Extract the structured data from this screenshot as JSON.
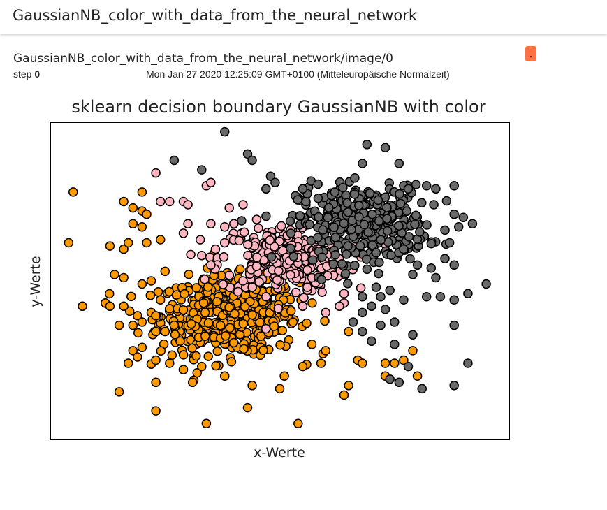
{
  "header": {
    "title": "GaussianNB_color_with_data_from_the_neural_network"
  },
  "card": {
    "tag": "GaussianNB_color_with_data_from_the_neural_network/image/0",
    "step_label": "step",
    "step_value": "0",
    "wall_time": "Mon Jan 27 2020 12:25:09 GMT+0100 (Mitteleuropäische Normalzeit)",
    "menu_button_color": "#ff7043"
  },
  "chart_data": {
    "type": "scatter",
    "title": "sklearn decision boundary GaussianNB with color",
    "xlabel": "x-Werte",
    "ylabel": "y-Werte",
    "ticks_visible": false,
    "xlim": [
      0,
      100
    ],
    "ylim": [
      0,
      100
    ],
    "marker_edge_color": "#000000",
    "series": [
      {
        "color": "#ff9900",
        "points": [
          [
            5,
            78
          ],
          [
            4,
            62
          ],
          [
            7,
            42
          ],
          [
            16,
            75
          ],
          [
            20,
            78
          ],
          [
            18,
            73
          ],
          [
            20,
            72
          ],
          [
            21,
            71
          ],
          [
            18,
            68
          ],
          [
            20,
            67
          ],
          [
            13,
            61
          ],
          [
            16,
            60
          ],
          [
            17,
            62
          ],
          [
            21,
            62
          ],
          [
            24,
            63
          ],
          [
            14,
            52
          ],
          [
            16,
            51
          ],
          [
            20,
            49
          ],
          [
            22,
            50
          ],
          [
            25,
            53
          ],
          [
            12,
            43
          ],
          [
            13,
            42
          ],
          [
            16,
            42
          ],
          [
            19,
            39
          ],
          [
            22,
            40
          ],
          [
            24,
            44
          ],
          [
            23,
            39
          ],
          [
            15,
            36
          ],
          [
            18,
            36
          ],
          [
            20,
            37
          ],
          [
            23,
            34
          ],
          [
            25,
            34
          ],
          [
            27,
            36
          ],
          [
            18,
            28
          ],
          [
            20,
            29
          ],
          [
            17,
            24
          ],
          [
            19,
            26
          ],
          [
            23,
            25
          ],
          [
            26,
            24
          ],
          [
            23,
            18
          ],
          [
            15,
            15
          ],
          [
            23,
            9
          ],
          [
            34,
            5
          ],
          [
            54,
            5
          ],
          [
            43,
            10
          ],
          [
            31,
            18
          ],
          [
            44,
            17
          ],
          [
            51,
            20
          ],
          [
            55,
            23
          ],
          [
            59,
            24
          ],
          [
            60,
            28
          ],
          [
            57,
            30
          ],
          [
            65,
            34
          ],
          [
            67,
            25
          ],
          [
            68,
            24
          ],
          [
            73,
            24
          ],
          [
            77,
            25
          ],
          [
            79,
            28
          ],
          [
            75,
            24
          ],
          [
            80,
            20
          ],
          [
            73,
            20
          ],
          [
            65,
            17
          ],
          [
            64,
            14
          ],
          [
            50,
            16
          ],
          [
            38,
            20
          ],
          [
            32,
            21
          ],
          [
            29,
            22
          ],
          [
            33,
            23
          ]
        ],
        "cluster": {
          "n": 520,
          "cx": 39,
          "cy": 39,
          "sx": 7.5,
          "sy": 6
        }
      },
      {
        "color": "#ffb6c1",
        "points": [
          [
            23,
            84
          ],
          [
            24,
            75
          ],
          [
            26,
            75
          ],
          [
            34,
            80
          ],
          [
            35,
            81
          ],
          [
            29,
            75
          ],
          [
            30,
            74
          ],
          [
            39,
            73
          ],
          [
            42,
            74
          ],
          [
            29,
            65
          ],
          [
            30,
            68
          ],
          [
            35,
            68
          ],
          [
            38,
            67
          ],
          [
            40,
            68
          ],
          [
            36,
            60
          ],
          [
            38,
            62
          ],
          [
            33,
            58
          ],
          [
            35,
            55
          ],
          [
            42,
            50
          ],
          [
            44,
            48
          ],
          [
            47,
            45
          ],
          [
            55,
            42
          ],
          [
            56,
            48
          ],
          [
            57,
            51
          ],
          [
            64,
            46
          ],
          [
            64,
            43
          ],
          [
            63,
            42
          ],
          [
            60,
            40
          ]
        ],
        "cluster": {
          "n": 260,
          "cx": 51,
          "cy": 57,
          "sx": 7,
          "sy": 5.5
        }
      },
      {
        "color": "#696969",
        "points": [
          [
            38,
            97
          ],
          [
            27,
            88
          ],
          [
            33,
            85
          ],
          [
            43,
            90
          ],
          [
            44,
            88
          ],
          [
            48,
            83
          ],
          [
            49,
            81
          ],
          [
            47,
            79
          ],
          [
            55,
            79
          ],
          [
            62,
            78
          ],
          [
            69,
            93
          ],
          [
            73,
            92
          ],
          [
            68,
            87
          ],
          [
            76,
            87
          ],
          [
            77,
            80
          ],
          [
            78,
            79
          ],
          [
            82,
            80
          ],
          [
            84,
            79
          ],
          [
            88,
            80
          ],
          [
            88,
            71
          ],
          [
            90,
            70
          ],
          [
            86,
            66
          ],
          [
            89,
            67
          ],
          [
            92,
            68
          ],
          [
            87,
            62
          ],
          [
            86,
            57
          ],
          [
            88,
            55
          ],
          [
            83,
            54
          ],
          [
            80,
            55
          ],
          [
            77,
            60
          ],
          [
            79,
            52
          ],
          [
            84,
            51
          ],
          [
            82,
            45
          ],
          [
            77,
            44
          ],
          [
            72,
            45
          ],
          [
            71,
            48
          ],
          [
            74,
            47
          ],
          [
            68,
            45
          ],
          [
            70,
            42
          ],
          [
            66,
            37
          ],
          [
            68,
            34
          ],
          [
            72,
            36
          ],
          [
            75,
            37
          ],
          [
            70,
            31
          ],
          [
            75,
            30
          ],
          [
            79,
            33
          ],
          [
            88,
            36
          ],
          [
            85,
            45
          ],
          [
            88,
            44
          ],
          [
            91,
            46
          ],
          [
            95,
            49
          ],
          [
            78,
            23
          ],
          [
            74,
            19
          ],
          [
            91,
            24
          ],
          [
            88,
            17
          ],
          [
            81,
            16
          ],
          [
            76,
            18
          ],
          [
            68,
            40
          ],
          [
            73,
            41
          ]
        ],
        "cluster": {
          "n": 360,
          "cx": 68,
          "cy": 68,
          "sx": 7,
          "sy": 6
        }
      }
    ]
  }
}
